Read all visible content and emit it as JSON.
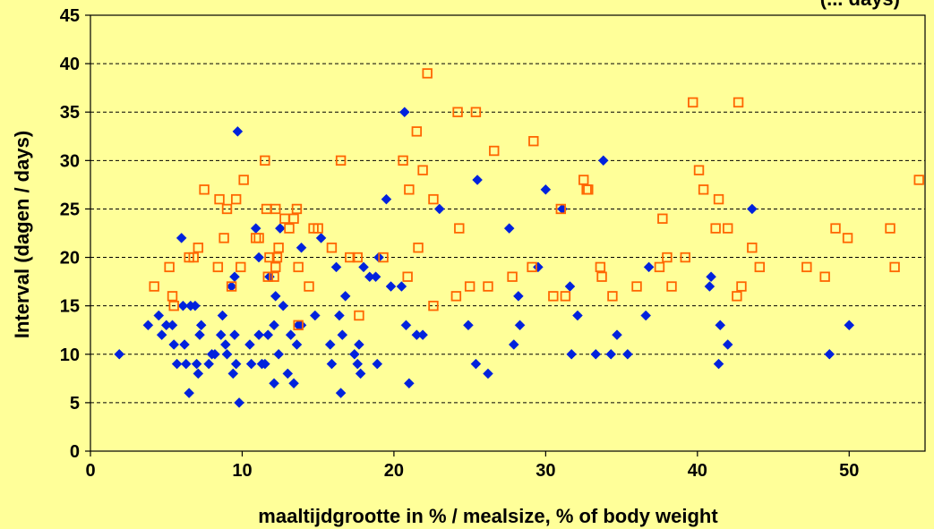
{
  "chart_data": {
    "type": "scatter",
    "title": "(... days)",
    "xlabel": "maaltijdgrootte in %  /  mealsize, % of body weight",
    "ylabel": "Interval (dagen  /  days)",
    "xlim": [
      0,
      55
    ],
    "ylim": [
      0,
      45
    ],
    "xticks": [
      0,
      10,
      20,
      30,
      40,
      50
    ],
    "yticks": [
      0,
      5,
      10,
      15,
      20,
      25,
      30,
      35,
      40,
      45
    ],
    "grid": "horizontal dashed",
    "legend": "none",
    "series": [
      {
        "marker": "filled-diamond",
        "color": "#0022DD",
        "points": [
          [
            1.9,
            10
          ],
          [
            3.8,
            13
          ],
          [
            4.5,
            14
          ],
          [
            4.7,
            12
          ],
          [
            5.0,
            13
          ],
          [
            5.4,
            13
          ],
          [
            5.5,
            11
          ],
          [
            5.7,
            9
          ],
          [
            6.0,
            22
          ],
          [
            6.1,
            15
          ],
          [
            6.2,
            11
          ],
          [
            6.3,
            9
          ],
          [
            6.5,
            6
          ],
          [
            6.6,
            15
          ],
          [
            6.9,
            15
          ],
          [
            7.0,
            9
          ],
          [
            7.1,
            8
          ],
          [
            7.2,
            12
          ],
          [
            7.3,
            13
          ],
          [
            7.8,
            9
          ],
          [
            8.0,
            10
          ],
          [
            8.2,
            10
          ],
          [
            8.6,
            12
          ],
          [
            8.7,
            14
          ],
          [
            8.9,
            11
          ],
          [
            9.0,
            10
          ],
          [
            9.3,
            17
          ],
          [
            9.4,
            8
          ],
          [
            9.5,
            12
          ],
          [
            9.5,
            18
          ],
          [
            9.6,
            9
          ],
          [
            9.7,
            33
          ],
          [
            9.8,
            5
          ],
          [
            10.5,
            11
          ],
          [
            10.6,
            9
          ],
          [
            10.9,
            23
          ],
          [
            11.1,
            12
          ],
          [
            11.1,
            20
          ],
          [
            11.3,
            9
          ],
          [
            11.5,
            9
          ],
          [
            11.7,
            12
          ],
          [
            11.8,
            18
          ],
          [
            12.1,
            7
          ],
          [
            12.1,
            13
          ],
          [
            12.2,
            16
          ],
          [
            12.4,
            10
          ],
          [
            12.5,
            23
          ],
          [
            12.7,
            15
          ],
          [
            13.0,
            8
          ],
          [
            13.2,
            12
          ],
          [
            13.4,
            7
          ],
          [
            13.6,
            11
          ],
          [
            13.7,
            13
          ],
          [
            13.9,
            21
          ],
          [
            13.9,
            13
          ],
          [
            14.8,
            14
          ],
          [
            15.2,
            22
          ],
          [
            15.8,
            11
          ],
          [
            15.9,
            9
          ],
          [
            16.2,
            19
          ],
          [
            16.4,
            14
          ],
          [
            16.5,
            6
          ],
          [
            16.6,
            12
          ],
          [
            16.8,
            16
          ],
          [
            17.4,
            10
          ],
          [
            17.6,
            9
          ],
          [
            17.7,
            11
          ],
          [
            17.8,
            8
          ],
          [
            18.0,
            19
          ],
          [
            18.4,
            18
          ],
          [
            18.8,
            18
          ],
          [
            18.9,
            9
          ],
          [
            19.0,
            20
          ],
          [
            19.5,
            26
          ],
          [
            19.8,
            17
          ],
          [
            20.5,
            17
          ],
          [
            20.7,
            35
          ],
          [
            20.8,
            13
          ],
          [
            21.0,
            7
          ],
          [
            21.5,
            12
          ],
          [
            21.9,
            12
          ],
          [
            23.0,
            25
          ],
          [
            24.9,
            13
          ],
          [
            25.4,
            9
          ],
          [
            25.5,
            28
          ],
          [
            26.2,
            8
          ],
          [
            27.6,
            23
          ],
          [
            27.9,
            11
          ],
          [
            28.2,
            16
          ],
          [
            28.3,
            13
          ],
          [
            29.5,
            19
          ],
          [
            30.0,
            27
          ],
          [
            31.1,
            25
          ],
          [
            31.6,
            17
          ],
          [
            31.7,
            10
          ],
          [
            32.1,
            14
          ],
          [
            33.3,
            10
          ],
          [
            33.8,
            30
          ],
          [
            34.3,
            10
          ],
          [
            34.7,
            12
          ],
          [
            35.4,
            10
          ],
          [
            36.6,
            14
          ],
          [
            36.8,
            19
          ],
          [
            40.8,
            17
          ],
          [
            40.9,
            18
          ],
          [
            41.4,
            9
          ],
          [
            41.5,
            13
          ],
          [
            42.0,
            11
          ],
          [
            43.6,
            25
          ],
          [
            48.7,
            10
          ],
          [
            50.0,
            13
          ]
        ]
      },
      {
        "marker": "open-square",
        "color": "#FF6600",
        "points": [
          [
            4.2,
            17
          ],
          [
            5.2,
            19
          ],
          [
            5.4,
            16
          ],
          [
            5.5,
            15
          ],
          [
            6.5,
            20
          ],
          [
            6.8,
            20
          ],
          [
            7.1,
            21
          ],
          [
            7.5,
            27
          ],
          [
            8.4,
            19
          ],
          [
            8.5,
            26
          ],
          [
            8.8,
            22
          ],
          [
            9.0,
            25
          ],
          [
            9.3,
            17
          ],
          [
            9.6,
            26
          ],
          [
            9.9,
            19
          ],
          [
            10.1,
            28
          ],
          [
            10.9,
            22
          ],
          [
            11.1,
            22
          ],
          [
            11.5,
            30
          ],
          [
            11.6,
            25
          ],
          [
            11.7,
            18
          ],
          [
            11.8,
            20
          ],
          [
            12.1,
            18
          ],
          [
            12.2,
            25
          ],
          [
            12.2,
            19
          ],
          [
            12.3,
            20
          ],
          [
            12.4,
            21
          ],
          [
            12.8,
            24
          ],
          [
            13.1,
            23
          ],
          [
            13.4,
            24
          ],
          [
            13.6,
            25
          ],
          [
            13.7,
            19
          ],
          [
            13.7,
            13
          ],
          [
            14.4,
            17
          ],
          [
            14.7,
            23
          ],
          [
            15.0,
            23
          ],
          [
            15.9,
            21
          ],
          [
            16.5,
            30
          ],
          [
            17.1,
            20
          ],
          [
            17.6,
            20
          ],
          [
            17.7,
            14
          ],
          [
            19.3,
            20
          ],
          [
            20.6,
            30
          ],
          [
            20.9,
            18
          ],
          [
            21.0,
            27
          ],
          [
            21.5,
            33
          ],
          [
            21.6,
            21
          ],
          [
            21.9,
            29
          ],
          [
            22.2,
            39
          ],
          [
            22.6,
            26
          ],
          [
            22.6,
            15
          ],
          [
            24.2,
            35
          ],
          [
            24.3,
            23
          ],
          [
            24.1,
            16
          ],
          [
            25.0,
            17
          ],
          [
            25.4,
            35
          ],
          [
            26.2,
            17
          ],
          [
            26.6,
            31
          ],
          [
            27.8,
            18
          ],
          [
            29.1,
            19
          ],
          [
            29.2,
            32
          ],
          [
            30.5,
            16
          ],
          [
            31.0,
            25
          ],
          [
            31.3,
            16
          ],
          [
            32.5,
            28
          ],
          [
            32.7,
            27
          ],
          [
            32.8,
            27
          ],
          [
            33.6,
            19
          ],
          [
            33.7,
            18
          ],
          [
            34.4,
            16
          ],
          [
            36.0,
            17
          ],
          [
            37.5,
            19
          ],
          [
            37.7,
            24
          ],
          [
            38.0,
            20
          ],
          [
            38.3,
            17
          ],
          [
            39.2,
            20
          ],
          [
            39.7,
            36
          ],
          [
            40.1,
            29
          ],
          [
            40.4,
            27
          ],
          [
            41.2,
            23
          ],
          [
            41.4,
            26
          ],
          [
            42.0,
            23
          ],
          [
            42.6,
            16
          ],
          [
            42.7,
            36
          ],
          [
            42.9,
            17
          ],
          [
            43.6,
            21
          ],
          [
            44.1,
            19
          ],
          [
            47.2,
            19
          ],
          [
            48.4,
            18
          ],
          [
            49.1,
            23
          ],
          [
            49.9,
            22
          ],
          [
            52.7,
            23
          ],
          [
            53.0,
            19
          ],
          [
            54.6,
            28
          ]
        ]
      }
    ]
  }
}
